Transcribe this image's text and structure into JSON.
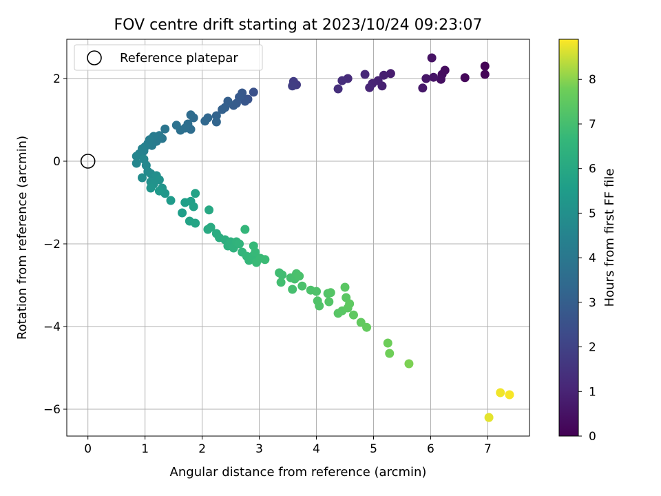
{
  "chart_data": {
    "type": "scatter",
    "title": "FOV centre drift starting at 2023/10/24 09:23:07",
    "xlabel": "Angular distance from reference (arcmin)",
    "ylabel": "Rotation from reference (arcmin)",
    "xlim": [
      -0.37,
      7.73
    ],
    "ylim": [
      -6.65,
      2.95
    ],
    "xticks": [
      0,
      1,
      2,
      3,
      4,
      5,
      6,
      7
    ],
    "yticks": [
      -6,
      -4,
      -2,
      0,
      2
    ],
    "xtick_labels": [
      "0",
      "1",
      "2",
      "3",
      "4",
      "5",
      "6",
      "7"
    ],
    "ytick_labels": [
      "−6",
      "−4",
      "−2",
      "0",
      "2"
    ],
    "grid": true,
    "legend": {
      "position": "top-left",
      "label": "Reference platepar"
    },
    "reference_point": {
      "x": 0,
      "y": 0
    },
    "colorbar": {
      "label": "Hours from first FF file",
      "colormap": "viridis",
      "range": [
        0,
        8.9
      ],
      "ticks": [
        0,
        1,
        2,
        3,
        4,
        5,
        6,
        7,
        8
      ],
      "tick_labels": [
        "0",
        "1",
        "2",
        "3",
        "4",
        "5",
        "6",
        "7",
        "8"
      ]
    },
    "points": [
      {
        "x": 6.95,
        "y": 2.3,
        "h": 0.05
      },
      {
        "x": 6.95,
        "y": 2.1,
        "h": 0.1
      },
      {
        "x": 6.6,
        "y": 2.02,
        "h": 0.2
      },
      {
        "x": 6.25,
        "y": 2.2,
        "h": 0.3
      },
      {
        "x": 6.2,
        "y": 2.1,
        "h": 0.35
      },
      {
        "x": 6.18,
        "y": 1.98,
        "h": 0.4
      },
      {
        "x": 6.02,
        "y": 2.5,
        "h": 0.5
      },
      {
        "x": 6.05,
        "y": 2.03,
        "h": 0.55
      },
      {
        "x": 5.92,
        "y": 2.0,
        "h": 0.6
      },
      {
        "x": 5.86,
        "y": 1.77,
        "h": 0.65
      },
      {
        "x": 5.3,
        "y": 2.12,
        "h": 0.8
      },
      {
        "x": 5.18,
        "y": 2.08,
        "h": 0.85
      },
      {
        "x": 5.15,
        "y": 1.82,
        "h": 0.9
      },
      {
        "x": 5.08,
        "y": 1.95,
        "h": 0.95
      },
      {
        "x": 4.98,
        "y": 1.88,
        "h": 1.0
      },
      {
        "x": 4.93,
        "y": 1.78,
        "h": 1.05
      },
      {
        "x": 4.85,
        "y": 2.1,
        "h": 1.1
      },
      {
        "x": 4.55,
        "y": 2.0,
        "h": 1.25
      },
      {
        "x": 4.45,
        "y": 1.95,
        "h": 1.3
      },
      {
        "x": 4.38,
        "y": 1.75,
        "h": 1.35
      },
      {
        "x": 3.65,
        "y": 1.85,
        "h": 1.75
      },
      {
        "x": 3.6,
        "y": 1.93,
        "h": 1.8
      },
      {
        "x": 3.58,
        "y": 1.82,
        "h": 1.85
      },
      {
        "x": 2.9,
        "y": 1.67,
        "h": 2.5
      },
      {
        "x": 2.8,
        "y": 1.5,
        "h": 2.6
      },
      {
        "x": 2.75,
        "y": 1.45,
        "h": 2.7
      },
      {
        "x": 2.7,
        "y": 1.65,
        "h": 2.75
      },
      {
        "x": 2.65,
        "y": 1.55,
        "h": 2.8
      },
      {
        "x": 2.6,
        "y": 1.4,
        "h": 2.85
      },
      {
        "x": 2.55,
        "y": 1.35,
        "h": 2.9
      },
      {
        "x": 2.45,
        "y": 1.45,
        "h": 3.0
      },
      {
        "x": 2.4,
        "y": 1.3,
        "h": 3.05
      },
      {
        "x": 2.35,
        "y": 1.25,
        "h": 3.1
      },
      {
        "x": 2.25,
        "y": 1.1,
        "h": 3.2
      },
      {
        "x": 2.25,
        "y": 0.95,
        "h": 3.25
      },
      {
        "x": 2.1,
        "y": 1.05,
        "h": 3.3
      },
      {
        "x": 2.05,
        "y": 0.97,
        "h": 3.35
      },
      {
        "x": 1.85,
        "y": 1.05,
        "h": 3.45
      },
      {
        "x": 1.8,
        "y": 1.12,
        "h": 3.5
      },
      {
        "x": 1.8,
        "y": 0.77,
        "h": 3.55
      },
      {
        "x": 1.75,
        "y": 0.9,
        "h": 3.6
      },
      {
        "x": 1.7,
        "y": 0.8,
        "h": 3.65
      },
      {
        "x": 1.62,
        "y": 0.75,
        "h": 3.7
      },
      {
        "x": 1.55,
        "y": 0.87,
        "h": 3.75
      },
      {
        "x": 1.35,
        "y": 0.78,
        "h": 3.9
      },
      {
        "x": 1.3,
        "y": 0.55,
        "h": 4.0
      },
      {
        "x": 1.25,
        "y": 0.62,
        "h": 4.05
      },
      {
        "x": 1.2,
        "y": 0.48,
        "h": 4.1
      },
      {
        "x": 1.15,
        "y": 0.6,
        "h": 4.15
      },
      {
        "x": 1.12,
        "y": 0.38,
        "h": 4.2
      },
      {
        "x": 1.08,
        "y": 0.52,
        "h": 4.25
      },
      {
        "x": 1.05,
        "y": 0.43,
        "h": 4.3
      },
      {
        "x": 1.0,
        "y": 0.35,
        "h": 4.35
      },
      {
        "x": 0.98,
        "y": 0.25,
        "h": 4.4
      },
      {
        "x": 0.95,
        "y": 0.3,
        "h": 4.45
      },
      {
        "x": 0.9,
        "y": 0.18,
        "h": 4.5
      },
      {
        "x": 0.85,
        "y": 0.12,
        "h": 4.55
      },
      {
        "x": 0.85,
        "y": -0.05,
        "h": 4.6
      },
      {
        "x": 0.98,
        "y": 0.05,
        "h": 4.65
      },
      {
        "x": 1.02,
        "y": -0.1,
        "h": 4.7
      },
      {
        "x": 1.05,
        "y": -0.25,
        "h": 4.75
      },
      {
        "x": 1.1,
        "y": -0.3,
        "h": 4.8
      },
      {
        "x": 0.95,
        "y": -0.4,
        "h": 4.85
      },
      {
        "x": 1.15,
        "y": -0.4,
        "h": 4.9
      },
      {
        "x": 1.2,
        "y": -0.35,
        "h": 4.95
      },
      {
        "x": 1.1,
        "y": -0.5,
        "h": 5.0
      },
      {
        "x": 1.25,
        "y": -0.45,
        "h": 5.05
      },
      {
        "x": 1.15,
        "y": -0.55,
        "h": 5.1
      },
      {
        "x": 1.3,
        "y": -0.65,
        "h": 5.15
      },
      {
        "x": 1.1,
        "y": -0.65,
        "h": 5.2
      },
      {
        "x": 1.35,
        "y": -0.78,
        "h": 5.3
      },
      {
        "x": 1.25,
        "y": -0.72,
        "h": 5.35
      },
      {
        "x": 1.45,
        "y": -0.95,
        "h": 5.45
      },
      {
        "x": 1.65,
        "y": -1.25,
        "h": 5.55
      },
      {
        "x": 1.7,
        "y": -1.0,
        "h": 5.6
      },
      {
        "x": 1.8,
        "y": -0.97,
        "h": 5.65
      },
      {
        "x": 1.85,
        "y": -1.1,
        "h": 5.7
      },
      {
        "x": 1.88,
        "y": -0.78,
        "h": 5.75
      },
      {
        "x": 1.78,
        "y": -1.45,
        "h": 5.8
      },
      {
        "x": 1.88,
        "y": -1.5,
        "h": 5.85
      },
      {
        "x": 2.12,
        "y": -1.18,
        "h": 6.0
      },
      {
        "x": 2.1,
        "y": -1.65,
        "h": 6.05
      },
      {
        "x": 2.15,
        "y": -1.6,
        "h": 6.1
      },
      {
        "x": 2.25,
        "y": -1.75,
        "h": 6.15
      },
      {
        "x": 2.3,
        "y": -1.85,
        "h": 6.2
      },
      {
        "x": 2.4,
        "y": -1.9,
        "h": 6.25
      },
      {
        "x": 2.45,
        "y": -2.05,
        "h": 6.3
      },
      {
        "x": 2.5,
        "y": -1.95,
        "h": 6.35
      },
      {
        "x": 2.55,
        "y": -2.1,
        "h": 6.4
      },
      {
        "x": 2.6,
        "y": -1.95,
        "h": 6.45
      },
      {
        "x": 2.65,
        "y": -2.0,
        "h": 6.5
      },
      {
        "x": 2.7,
        "y": -2.2,
        "h": 6.55
      },
      {
        "x": 2.75,
        "y": -1.65,
        "h": 6.6
      },
      {
        "x": 2.78,
        "y": -2.3,
        "h": 6.62
      },
      {
        "x": 2.82,
        "y": -2.4,
        "h": 6.65
      },
      {
        "x": 2.88,
        "y": -2.3,
        "h": 6.68
      },
      {
        "x": 2.9,
        "y": -2.05,
        "h": 6.7
      },
      {
        "x": 2.93,
        "y": -2.2,
        "h": 6.72
      },
      {
        "x": 2.95,
        "y": -2.45,
        "h": 6.75
      },
      {
        "x": 3.02,
        "y": -2.35,
        "h": 6.78
      },
      {
        "x": 3.1,
        "y": -2.38,
        "h": 6.8
      },
      {
        "x": 3.35,
        "y": -2.7,
        "h": 6.9
      },
      {
        "x": 3.4,
        "y": -2.75,
        "h": 6.92
      },
      {
        "x": 3.38,
        "y": -2.93,
        "h": 6.95
      },
      {
        "x": 3.55,
        "y": -2.82,
        "h": 7.0
      },
      {
        "x": 3.58,
        "y": -3.1,
        "h": 7.02
      },
      {
        "x": 3.62,
        "y": -2.85,
        "h": 7.05
      },
      {
        "x": 3.65,
        "y": -2.72,
        "h": 7.08
      },
      {
        "x": 3.7,
        "y": -2.78,
        "h": 7.1
      },
      {
        "x": 3.75,
        "y": -3.02,
        "h": 7.12
      },
      {
        "x": 3.9,
        "y": -3.12,
        "h": 7.15
      },
      {
        "x": 4.0,
        "y": -3.15,
        "h": 7.18
      },
      {
        "x": 4.02,
        "y": -3.38,
        "h": 7.2
      },
      {
        "x": 4.05,
        "y": -3.5,
        "h": 7.22
      },
      {
        "x": 4.2,
        "y": -3.2,
        "h": 7.25
      },
      {
        "x": 4.22,
        "y": -3.4,
        "h": 7.28
      },
      {
        "x": 4.25,
        "y": -3.18,
        "h": 7.3
      },
      {
        "x": 4.38,
        "y": -3.68,
        "h": 7.35
      },
      {
        "x": 4.45,
        "y": -3.62,
        "h": 7.38
      },
      {
        "x": 4.5,
        "y": -3.05,
        "h": 7.4
      },
      {
        "x": 4.52,
        "y": -3.3,
        "h": 7.42
      },
      {
        "x": 4.55,
        "y": -3.55,
        "h": 7.45
      },
      {
        "x": 4.58,
        "y": -3.45,
        "h": 7.48
      },
      {
        "x": 4.65,
        "y": -3.72,
        "h": 7.5
      },
      {
        "x": 4.78,
        "y": -3.9,
        "h": 7.55
      },
      {
        "x": 4.88,
        "y": -4.02,
        "h": 7.6
      },
      {
        "x": 5.25,
        "y": -4.4,
        "h": 7.75
      },
      {
        "x": 5.28,
        "y": -4.65,
        "h": 7.78
      },
      {
        "x": 5.62,
        "y": -4.9,
        "h": 7.9
      },
      {
        "x": 7.02,
        "y": -6.2,
        "h": 8.7
      },
      {
        "x": 7.22,
        "y": -5.6,
        "h": 8.8
      },
      {
        "x": 7.38,
        "y": -5.65,
        "h": 8.85
      }
    ]
  }
}
